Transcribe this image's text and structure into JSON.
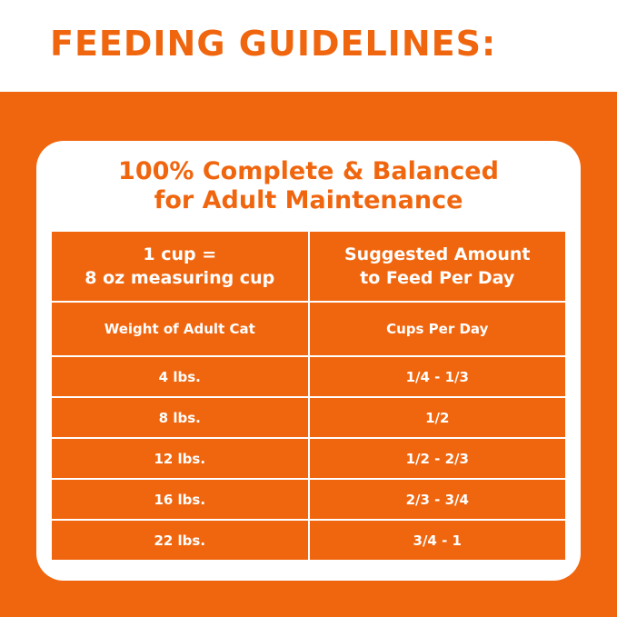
{
  "header": {
    "title": "FEEDING GUIDELINES:"
  },
  "card": {
    "title": [
      "100% Complete & Balanced",
      "for Adult Maintenance"
    ]
  },
  "table": {
    "header": [
      [
        "1 cup =",
        "8 oz measuring cup"
      ],
      [
        "Suggested Amount",
        "to Feed Per Day"
      ]
    ],
    "columns": [
      "Weight of Adult Cat",
      "Cups Per Day"
    ],
    "rows": [
      [
        "4 lbs.",
        "1/4 - 1/3"
      ],
      [
        "8 lbs.",
        "1/2"
      ],
      [
        "12 lbs.",
        "1/2 - 2/3"
      ],
      [
        "16 lbs.",
        "2/3 - 3/4"
      ],
      [
        "22 lbs.",
        "3/4 - 1"
      ]
    ]
  }
}
